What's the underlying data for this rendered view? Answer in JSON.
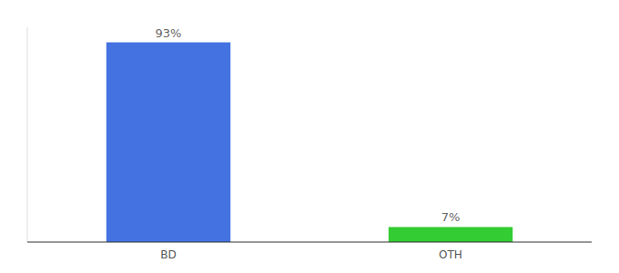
{
  "chart_data": {
    "type": "bar",
    "categories": [
      "BD",
      "OTH"
    ],
    "values": [
      93,
      7
    ],
    "value_labels": [
      "93%",
      "7%"
    ],
    "colors": [
      "#4472e0",
      "#33cc33"
    ],
    "ylim": [
      0,
      100
    ],
    "tick_labels": "x"
  }
}
